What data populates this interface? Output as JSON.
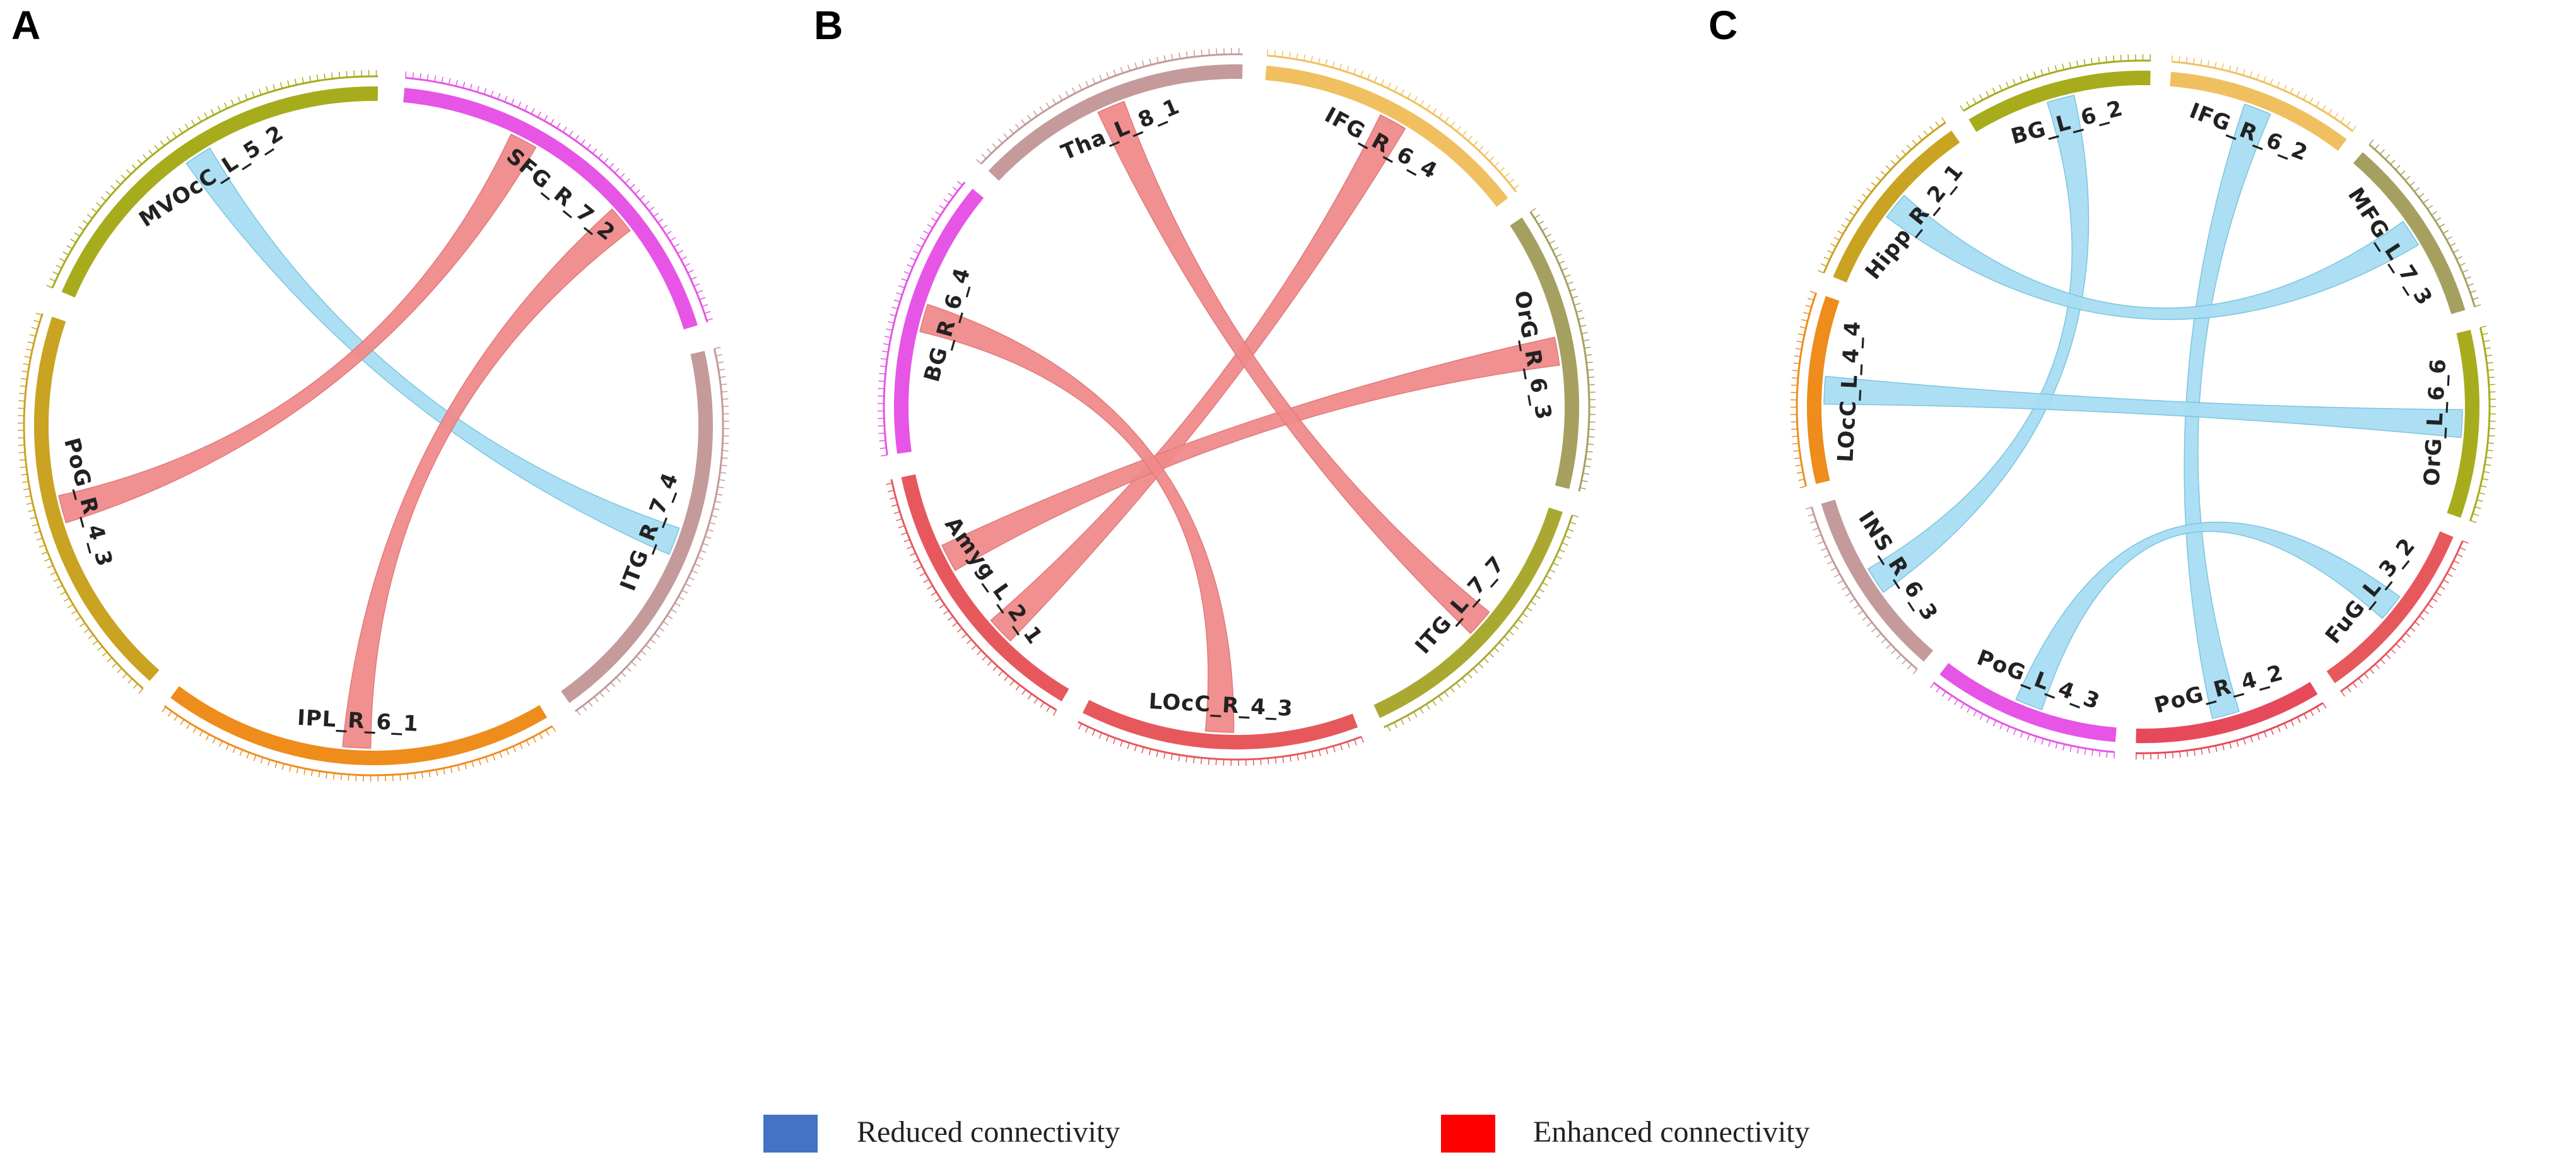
{
  "figure": {
    "chart_data": [
      {
        "type": "chord",
        "panel": "A",
        "regions": [
          {
            "name": "SFG_R_7_2",
            "color": "#e655e6"
          },
          {
            "name": "ITG_R_7_4",
            "color": "#c49a9a"
          },
          {
            "name": "IPL_R_6_1",
            "color": "#ee8c1c"
          },
          {
            "name": "PoG_R_4_3",
            "color": "#c9a321"
          },
          {
            "name": "MVOcC_L_5_2",
            "color": "#a6ac1c"
          }
        ],
        "connections": [
          {
            "from": "MVOcC_L_5_2",
            "to": "ITG_R_7_4",
            "type": "reduced"
          },
          {
            "from": "SFG_R_7_2",
            "to": "PoG_R_4_3",
            "type": "enhanced"
          },
          {
            "from": "SFG_R_7_2",
            "to": "IPL_R_6_1",
            "type": "enhanced"
          }
        ]
      },
      {
        "type": "chord",
        "panel": "B",
        "regions": [
          {
            "name": "IFG_R_6_4",
            "color": "#f0c060"
          },
          {
            "name": "OrG_R_6_3",
            "color": "#a5a060"
          },
          {
            "name": "ITG_L_7_7",
            "color": "#a9a931"
          },
          {
            "name": "LOcC_R_4_3",
            "color": "#e6585c"
          },
          {
            "name": "Amyg_L_2_1",
            "color": "#e6585c"
          },
          {
            "name": "BG_R_6_4",
            "color": "#e655e6"
          },
          {
            "name": "Tha_L_8_1",
            "color": "#c49a9a"
          }
        ],
        "connections": [
          {
            "from": "IFG_R_6_4",
            "to": "Amyg_L_2_1",
            "type": "enhanced"
          },
          {
            "from": "OrG_R_6_3",
            "to": "Amyg_L_2_1",
            "type": "enhanced"
          },
          {
            "from": "Tha_L_8_1",
            "to": "ITG_L_7_7",
            "type": "enhanced"
          },
          {
            "from": "BG_R_6_4",
            "to": "LOcC_R_4_3",
            "type": "enhanced"
          }
        ]
      },
      {
        "type": "chord",
        "panel": "C",
        "regions": [
          {
            "name": "IFG_R_6_2",
            "color": "#f0c060"
          },
          {
            "name": "MFG_L_7_3",
            "color": "#a5a060"
          },
          {
            "name": "OrG_L_6_6",
            "color": "#a6ac1c"
          },
          {
            "name": "FuG_L_3_2",
            "color": "#e6585c"
          },
          {
            "name": "PoG_R_4_2",
            "color": "#e64a5a"
          },
          {
            "name": "PoG_L_4_3",
            "color": "#e655e6"
          },
          {
            "name": "INS_R_6_3",
            "color": "#c49a9a"
          },
          {
            "name": "LOcC_L_4_4",
            "color": "#ee8c1c"
          },
          {
            "name": "Hipp_R_2_1",
            "color": "#c9a321"
          },
          {
            "name": "BG_L_6_2",
            "color": "#a6ac1c"
          }
        ],
        "connections": [
          {
            "from": "BG_L_6_2",
            "to": "INS_R_6_3",
            "type": "reduced"
          },
          {
            "from": "IFG_R_6_2",
            "to": "PoG_R_4_2",
            "type": "reduced"
          },
          {
            "from": "Hipp_R_2_1",
            "to": "MFG_L_7_3",
            "type": "reduced"
          },
          {
            "from": "LOcC_L_4_4",
            "to": "OrG_L_6_6",
            "type": "reduced"
          },
          {
            "from": "FuG_L_3_2",
            "to": "PoG_L_4_3",
            "type": "reduced"
          }
        ]
      }
    ],
    "legend": [
      {
        "key": "reduced",
        "label": "Reduced connectivity",
        "swatch": "#4472c4",
        "ribbon": "#a8ddf2"
      },
      {
        "key": "enhanced",
        "label": "Enhanced connectivity",
        "swatch": "#ff0000",
        "ribbon": "#f08a8a"
      }
    ]
  }
}
